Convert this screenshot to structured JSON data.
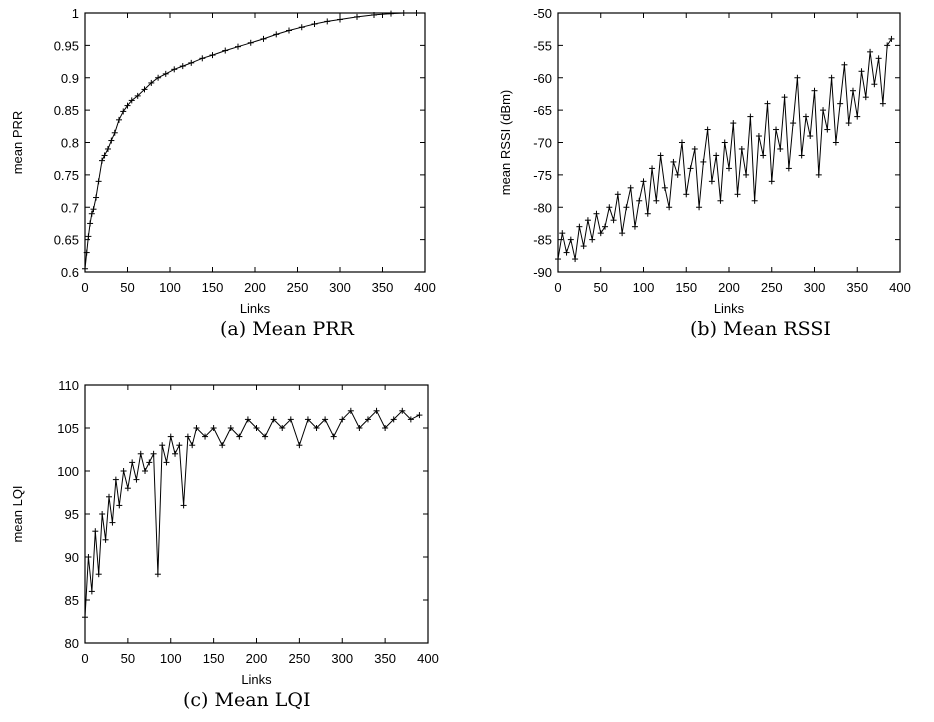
{
  "chart_data": [
    {
      "type": "line",
      "ylabel": "mean PRR",
      "xlabel": "Links",
      "caption": "(a) Mean PRR",
      "xlim": [
        0,
        400
      ],
      "ylim": [
        0.6,
        1.0
      ],
      "xticks": [
        "0",
        "50",
        "100",
        "150",
        "200",
        "250",
        "300",
        "350",
        "400"
      ],
      "yticks": [
        "0.6",
        "0.65",
        "0.7",
        "0.75",
        "0.8",
        "0.85",
        "0.9",
        "0.95",
        "1"
      ],
      "grid": false,
      "marker": "+",
      "series": [
        {
          "x": [
            0,
            2,
            4,
            6,
            8,
            10,
            13,
            16,
            20,
            23,
            27,
            31,
            35,
            40,
            45,
            50,
            55,
            62,
            70,
            78,
            86,
            95,
            105,
            115,
            125,
            138,
            150,
            165,
            180,
            195,
            210,
            225,
            240,
            255,
            270,
            285,
            300,
            320,
            340,
            360,
            375,
            390
          ],
          "y": [
            0.605,
            0.63,
            0.655,
            0.675,
            0.69,
            0.697,
            0.715,
            0.74,
            0.772,
            0.78,
            0.79,
            0.803,
            0.815,
            0.835,
            0.848,
            0.857,
            0.865,
            0.872,
            0.882,
            0.892,
            0.9,
            0.906,
            0.913,
            0.918,
            0.923,
            0.93,
            0.935,
            0.942,
            0.948,
            0.954,
            0.96,
            0.967,
            0.973,
            0.978,
            0.983,
            0.987,
            0.99,
            0.994,
            0.997,
            0.999,
            1.0,
            1.0
          ]
        }
      ]
    },
    {
      "type": "line",
      "ylabel": "mean RSSI (dBm)",
      "xlabel": "Links",
      "caption": "(b) Mean RSSI",
      "xlim": [
        0,
        400
      ],
      "ylim": [
        -90,
        -50
      ],
      "xticks": [
        "0",
        "50",
        "100",
        "150",
        "200",
        "250",
        "300",
        "350",
        "400"
      ],
      "yticks": [
        "-90",
        "-85",
        "-80",
        "-75",
        "-70",
        "-65",
        "-60",
        "-55",
        "-50"
      ],
      "grid": false,
      "marker": "+",
      "series": [
        {
          "x": [
            0,
            5,
            10,
            15,
            20,
            25,
            30,
            35,
            40,
            45,
            50,
            55,
            60,
            65,
            70,
            75,
            80,
            85,
            90,
            95,
            100,
            105,
            110,
            115,
            120,
            125,
            130,
            135,
            140,
            145,
            150,
            155,
            160,
            165,
            170,
            175,
            180,
            185,
            190,
            195,
            200,
            205,
            210,
            215,
            220,
            225,
            230,
            235,
            240,
            245,
            250,
            255,
            260,
            265,
            270,
            275,
            280,
            285,
            290,
            295,
            300,
            305,
            310,
            315,
            320,
            325,
            330,
            335,
            340,
            345,
            350,
            355,
            360,
            365,
            370,
            375,
            380,
            385,
            390
          ],
          "y": [
            -88,
            -84,
            -87,
            -85,
            -88,
            -83,
            -86,
            -82,
            -85,
            -81,
            -84,
            -83,
            -80,
            -82,
            -78,
            -84,
            -80,
            -77,
            -83,
            -79,
            -76,
            -81,
            -74,
            -79,
            -72,
            -77,
            -80,
            -73,
            -75,
            -70,
            -78,
            -74,
            -71,
            -80,
            -73,
            -68,
            -76,
            -72,
            -79,
            -70,
            -74,
            -67,
            -78,
            -71,
            -75,
            -66,
            -79,
            -69,
            -72,
            -64,
            -76,
            -68,
            -71,
            -63,
            -74,
            -67,
            -60,
            -72,
            -66,
            -69,
            -62,
            -75,
            -65,
            -68,
            -60,
            -70,
            -64,
            -58,
            -67,
            -62,
            -66,
            -59,
            -63,
            -56,
            -61,
            -57,
            -64,
            -55,
            -54
          ]
        }
      ]
    },
    {
      "type": "line",
      "ylabel": "mean LQI",
      "xlabel": "Links",
      "caption": "(c) Mean LQI",
      "xlim": [
        0,
        400
      ],
      "ylim": [
        80,
        110
      ],
      "xticks": [
        "0",
        "50",
        "100",
        "150",
        "200",
        "250",
        "300",
        "350",
        "400"
      ],
      "yticks": [
        "80",
        "85",
        "90",
        "95",
        "100",
        "105",
        "110"
      ],
      "grid": false,
      "marker": "+",
      "series": [
        {
          "x": [
            0,
            4,
            8,
            12,
            16,
            20,
            24,
            28,
            32,
            36,
            40,
            45,
            50,
            55,
            60,
            65,
            70,
            75,
            80,
            85,
            90,
            95,
            100,
            105,
            110,
            115,
            120,
            125,
            130,
            140,
            150,
            160,
            170,
            180,
            190,
            200,
            210,
            220,
            230,
            240,
            250,
            260,
            270,
            280,
            290,
            300,
            310,
            320,
            330,
            340,
            350,
            360,
            370,
            380,
            390
          ],
          "y": [
            83,
            90,
            86,
            93,
            88,
            95,
            92,
            97,
            94,
            99,
            96,
            100,
            98,
            101,
            99,
            102,
            100,
            101,
            102,
            88,
            103,
            101,
            104,
            102,
            103,
            96,
            104,
            103,
            105,
            104,
            105,
            103,
            105,
            104,
            106,
            105,
            104,
            106,
            105,
            106,
            103,
            106,
            105,
            106,
            104,
            106,
            107,
            105,
            106,
            107,
            105,
            106,
            107,
            106,
            106.5
          ]
        }
      ]
    }
  ]
}
